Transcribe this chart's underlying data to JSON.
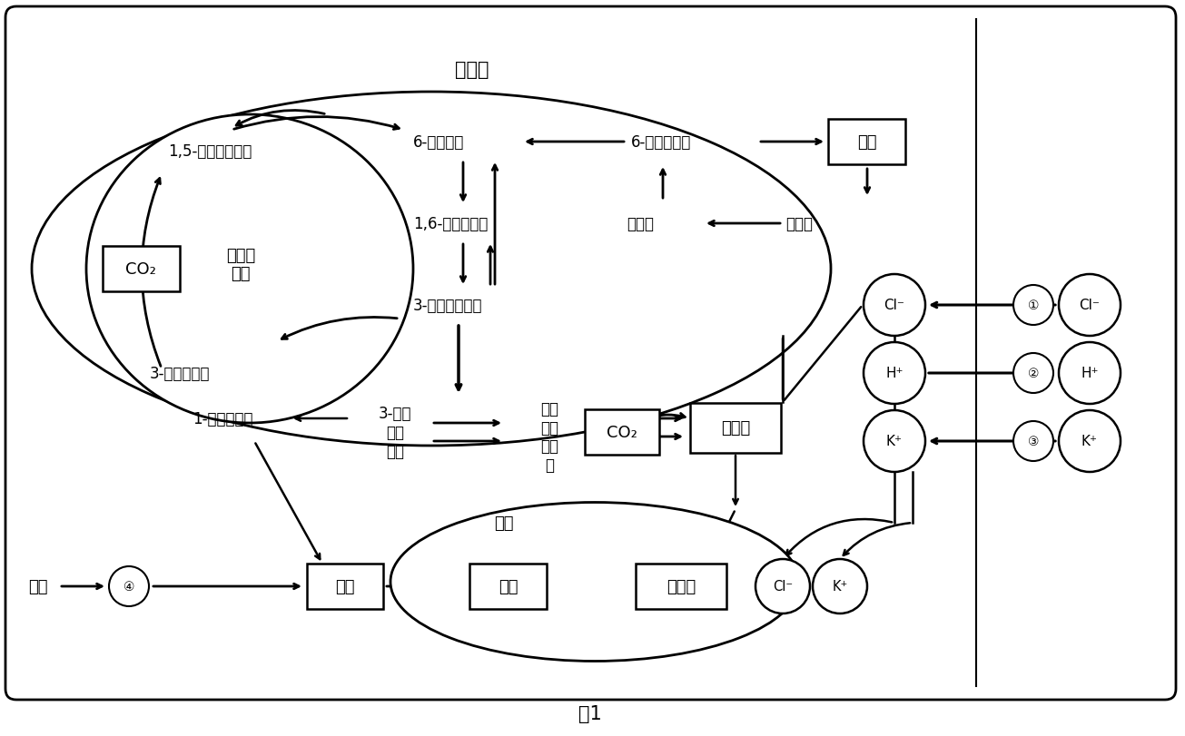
{
  "title": "图1",
  "chloroplast_label": "叶绿体",
  "calvin_label": "卡尔文\n循环",
  "vacuole_label": "液泡",
  "co2_label": "CO₂",
  "labels": {
    "ribose15": "1,5-二磷酸核酮糖",
    "glycerate3": "3-磷酸甘油酸",
    "fructose6p": "6-磷酸果糖",
    "fructose16p": "1,6-二磷酸果糖",
    "dhap3": "3-磷酸二羟丙酮",
    "glucose6p": "6-磷酸葡萄糖",
    "starch": "淠粉",
    "glucose": "葡萄糖",
    "maltose": "麦芒糖",
    "glucose1p": "1-磷酸葡萄糖",
    "pgal3": "3-磷酸\n二羟\n丙酮",
    "pep": "磷酸\n烯醇\n丙酮\n酸",
    "malate": "苹果酸",
    "malate_v": "苹果酸",
    "sucrose_out": "蔗糖",
    "sucrose_box": "蔗糖",
    "sucrose_v": "蔗糖"
  },
  "ions_inside": [
    "Cl⁻",
    "H⁺",
    "K⁺"
  ],
  "ions_outside": [
    "Cl⁻",
    "H⁺",
    "K⁺"
  ],
  "ion_numbers": [
    "①",
    "②",
    "③"
  ],
  "num4": "④",
  "fs": 13,
  "fs_s": 12,
  "fs_title": 15
}
